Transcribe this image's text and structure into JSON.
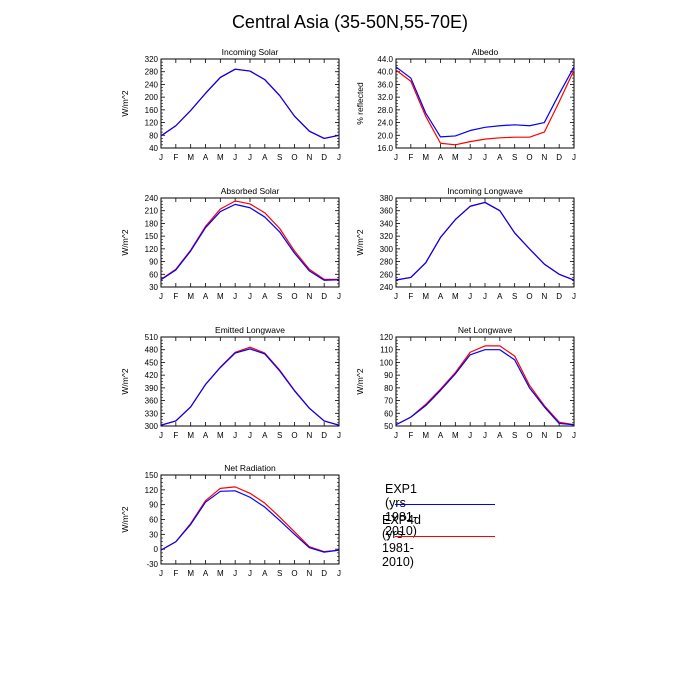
{
  "title": "Central Asia (35-50N,55-70E)",
  "colors": {
    "EXP1": "#0000ff",
    "EXP4d": "#ff0000"
  },
  "legend": [
    {
      "label": "EXP1 (yrs 1981-2010)",
      "color": "#0000ff"
    },
    {
      "label": "EXP4d (yrs 1981-2010)",
      "color": "#ff0000"
    }
  ],
  "chart_data": [
    {
      "type": "line",
      "title": "Incoming Solar",
      "ylabel": "W/m^2",
      "categories": [
        "J",
        "F",
        "M",
        "A",
        "M",
        "J",
        "J",
        "A",
        "S",
        "O",
        "N",
        "D",
        "J"
      ],
      "ylim": [
        40,
        320
      ],
      "yticks": [
        "40",
        "80",
        "120",
        "160",
        "200",
        "240",
        "280",
        "320"
      ],
      "series": [
        {
          "name": "EXP1",
          "values": [
            78,
            110,
            158,
            212,
            262,
            288,
            282,
            255,
            205,
            140,
            93,
            70,
            80
          ]
        },
        {
          "name": "EXP4d",
          "values": [
            78,
            110,
            158,
            212,
            262,
            288,
            282,
            255,
            205,
            140,
            93,
            70,
            80
          ]
        }
      ]
    },
    {
      "type": "line",
      "title": "Albedo",
      "ylabel": "% reflected",
      "categories": [
        "J",
        "F",
        "M",
        "A",
        "M",
        "J",
        "J",
        "A",
        "S",
        "O",
        "N",
        "D",
        "J"
      ],
      "ylim": [
        16,
        44
      ],
      "yticks": [
        "16.0",
        "20.0",
        "24.0",
        "28.0",
        "32.0",
        "36.0",
        "40.0",
        "44.0"
      ],
      "series": [
        {
          "name": "EXP1",
          "values": [
            41.5,
            38.0,
            27.0,
            19.5,
            19.8,
            21.5,
            22.5,
            23.0,
            23.3,
            23.0,
            24.0,
            33.0,
            41.5
          ]
        },
        {
          "name": "EXP4d",
          "values": [
            40.5,
            37.0,
            26.0,
            17.5,
            17.0,
            18.0,
            18.8,
            19.2,
            19.4,
            19.4,
            21.0,
            30.5,
            40.5
          ]
        }
      ]
    },
    {
      "type": "line",
      "title": "Absorbed Solar",
      "ylabel": "W/m^2",
      "categories": [
        "J",
        "F",
        "M",
        "A",
        "M",
        "J",
        "J",
        "A",
        "S",
        "O",
        "N",
        "D",
        "J"
      ],
      "ylim": [
        30,
        240
      ],
      "yticks": [
        "30",
        "60",
        "90",
        "120",
        "150",
        "180",
        "210",
        "240"
      ],
      "series": [
        {
          "name": "EXP1",
          "values": [
            47,
            70,
            115,
            170,
            208,
            225,
            217,
            195,
            160,
            110,
            68,
            46,
            47
          ]
        },
        {
          "name": "EXP4d",
          "values": [
            48,
            72,
            117,
            173,
            214,
            233,
            226,
            205,
            168,
            115,
            72,
            48,
            48
          ]
        }
      ]
    },
    {
      "type": "line",
      "title": "Incoming Longwave",
      "ylabel": "W/m^2",
      "categories": [
        "J",
        "F",
        "M",
        "A",
        "M",
        "J",
        "J",
        "A",
        "S",
        "O",
        "N",
        "D",
        "J"
      ],
      "ylim": [
        240,
        380
      ],
      "yticks": [
        "240",
        "260",
        "280",
        "300",
        "320",
        "340",
        "360",
        "380"
      ],
      "series": [
        {
          "name": "EXP1",
          "values": [
            251,
            255,
            278,
            318,
            346,
            367,
            373,
            360,
            325,
            300,
            276,
            260,
            251
          ]
        },
        {
          "name": "EXP4d",
          "values": [
            251,
            255,
            278,
            318,
            346,
            367,
            373,
            360,
            325,
            300,
            276,
            260,
            251
          ]
        }
      ]
    },
    {
      "type": "line",
      "title": "Emitted Longwave",
      "ylabel": "W/m^2",
      "categories": [
        "J",
        "F",
        "M",
        "A",
        "M",
        "J",
        "J",
        "A",
        "S",
        "O",
        "N",
        "D",
        "J"
      ],
      "ylim": [
        300,
        510
      ],
      "yticks": [
        "300",
        "330",
        "360",
        "390",
        "420",
        "450",
        "480",
        "510"
      ],
      "series": [
        {
          "name": "EXP1",
          "values": [
            302,
            312,
            345,
            398,
            438,
            472,
            482,
            470,
            430,
            383,
            342,
            312,
            302
          ]
        },
        {
          "name": "EXP4d",
          "values": [
            302,
            312,
            345,
            398,
            439,
            474,
            486,
            472,
            432,
            384,
            342,
            312,
            302
          ]
        }
      ]
    },
    {
      "type": "line",
      "title": "Net Longwave",
      "ylabel": "W/m^2",
      "categories": [
        "J",
        "F",
        "M",
        "A",
        "M",
        "J",
        "J",
        "A",
        "S",
        "O",
        "N",
        "D",
        "J"
      ],
      "ylim": [
        50,
        120
      ],
      "yticks": [
        "50",
        "60",
        "70",
        "80",
        "90",
        "100",
        "110",
        "120"
      ],
      "series": [
        {
          "name": "EXP1",
          "values": [
            51,
            57,
            66,
            78,
            91,
            106,
            110,
            110,
            102,
            80,
            65,
            52,
            51
          ]
        },
        {
          "name": "EXP4d",
          "values": [
            51,
            57,
            67,
            79,
            92,
            108,
            113,
            113,
            105,
            82,
            66,
            53,
            51
          ]
        }
      ]
    },
    {
      "type": "line",
      "title": "Net Radiation",
      "ylabel": "W/m^2",
      "categories": [
        "J",
        "F",
        "M",
        "A",
        "M",
        "J",
        "J",
        "A",
        "S",
        "O",
        "N",
        "D",
        "J"
      ],
      "ylim": [
        -30,
        150
      ],
      "yticks": [
        "-30",
        "0",
        "30",
        "60",
        "90",
        "120",
        "150"
      ],
      "series": [
        {
          "name": "EXP1",
          "values": [
            -2,
            15,
            50,
            95,
            117,
            118,
            105,
            85,
            58,
            30,
            3,
            -6,
            -2
          ]
        },
        {
          "name": "EXP4d",
          "values": [
            -2,
            15,
            52,
            98,
            123,
            126,
            113,
            93,
            65,
            35,
            5,
            -5,
            -2
          ]
        }
      ]
    }
  ]
}
